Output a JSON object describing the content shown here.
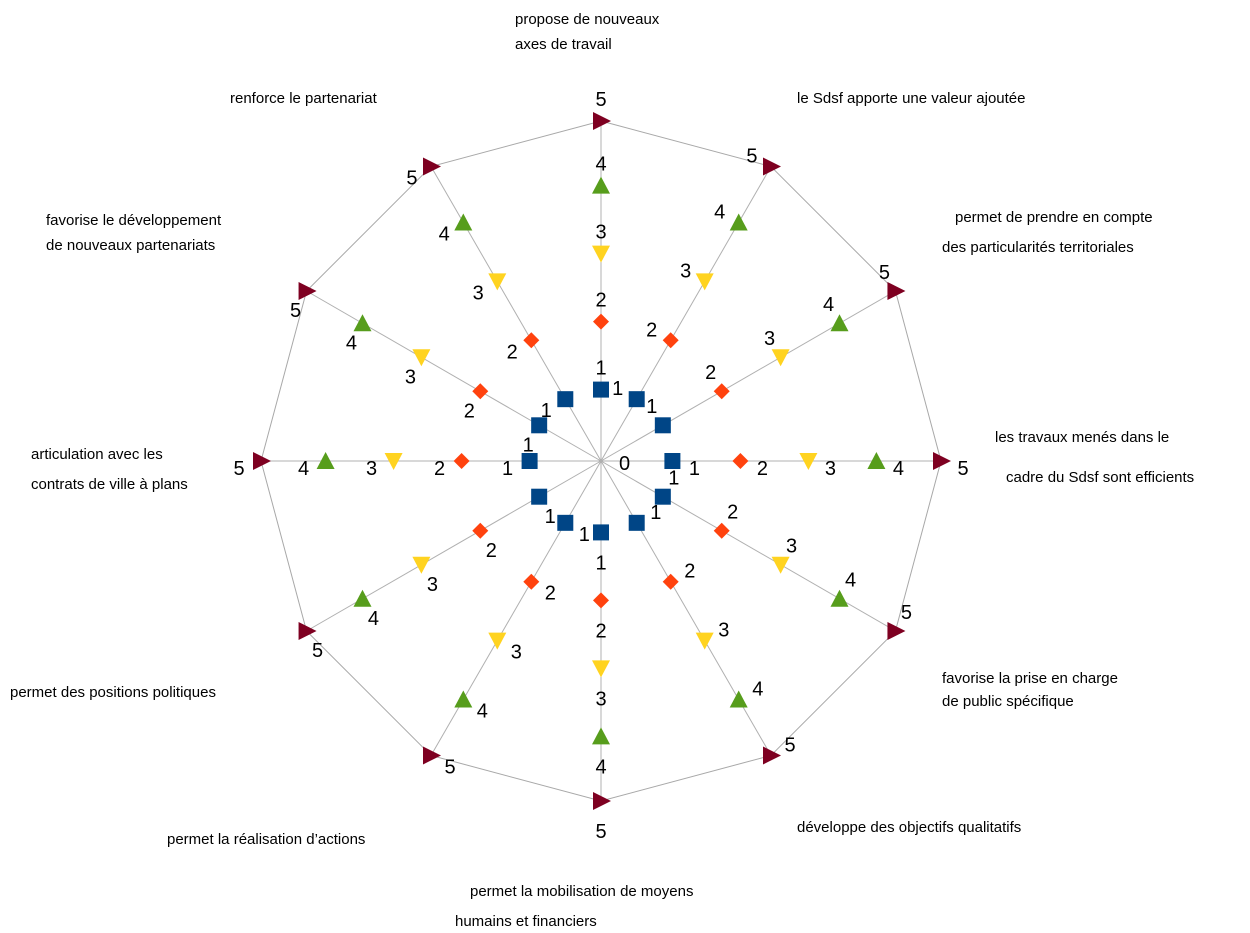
{
  "chart_data": {
    "type": "radar",
    "title": "",
    "center_label": "0",
    "categories": [
      [
        "propose de nouveaux",
        "axes de travail"
      ],
      [
        "le Sdsf apporte une valeur ajoutée"
      ],
      [
        "permet de prendre en compte",
        "des particularités territoriales"
      ],
      [
        "les travaux menés dans le",
        "cadre du Sdsf sont efficients"
      ],
      [
        "favorise la prise en charge",
        "de public spécifique"
      ],
      [
        "développe des objectifs qualitatifs"
      ],
      [
        "permet la mobilisation de moyens",
        "humains et financiers"
      ],
      [
        "permet la réalisation d’actions"
      ],
      [
        "permet des positions politiques"
      ],
      [
        "articulation avec les",
        "contrats de ville à plans"
      ],
      [
        "favorise le développement",
        "de nouveaux partenariats"
      ],
      [
        "renforce le partenariat"
      ]
    ],
    "series": [
      {
        "value": 1,
        "marker": "square",
        "color": "#004586",
        "values": [
          1,
          1,
          1,
          1,
          1,
          1,
          1,
          1,
          1,
          1,
          1,
          1
        ]
      },
      {
        "value": 2,
        "marker": "diamond",
        "color": "#ff420e",
        "values": [
          2,
          2,
          2,
          2,
          2,
          2,
          2,
          2,
          2,
          2,
          2,
          2
        ]
      },
      {
        "value": 3,
        "marker": "triangle-down",
        "color": "#ffd320",
        "values": [
          3,
          3,
          3,
          3,
          3,
          3,
          3,
          3,
          3,
          3,
          3,
          3
        ]
      },
      {
        "value": 4,
        "marker": "triangle-up",
        "color": "#579d1c",
        "values": [
          4,
          4,
          4,
          4,
          4,
          4,
          4,
          4,
          4,
          4,
          4,
          4
        ]
      },
      {
        "value": 5,
        "marker": "triangle-right",
        "color": "#7e0021",
        "values": [
          5,
          5,
          5,
          5,
          5,
          5,
          5,
          5,
          5,
          5,
          5,
          5
        ]
      }
    ],
    "rlim": [
      0,
      5
    ],
    "legend": "none"
  }
}
